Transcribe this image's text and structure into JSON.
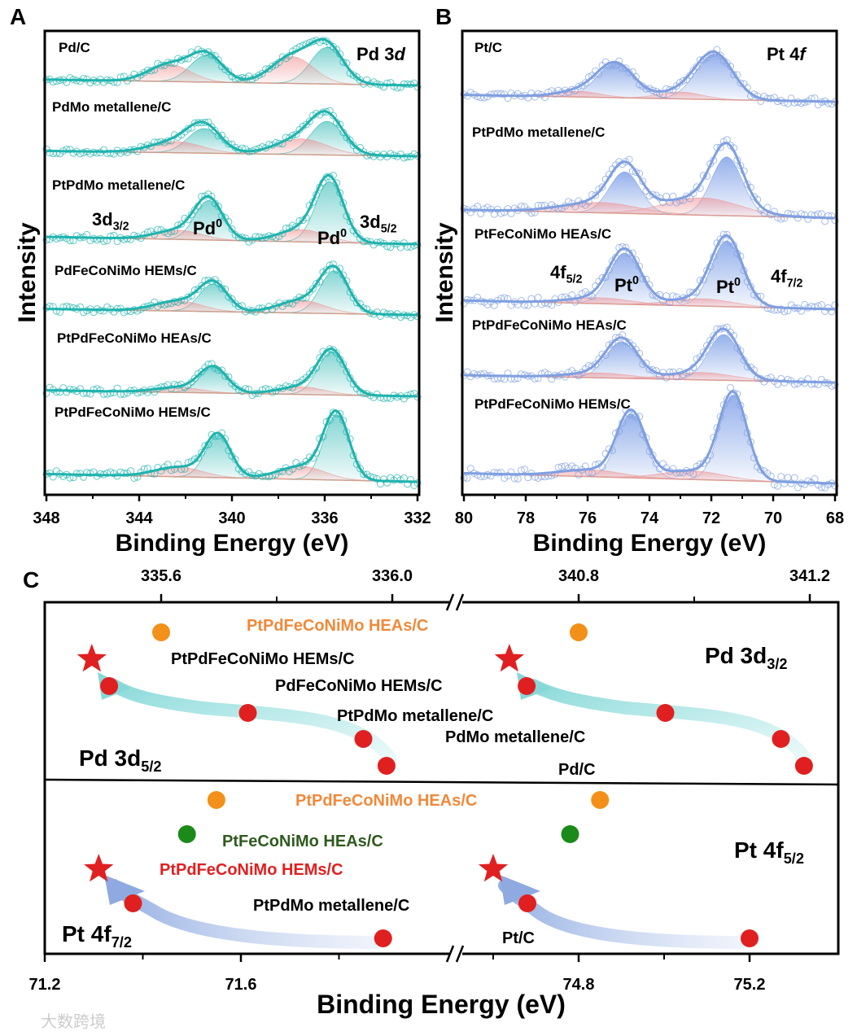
{
  "panel_letters": [
    "A",
    "B",
    "C"
  ],
  "watermark": "大数跨境",
  "colors": {
    "teal": "#1fb3ae",
    "blue": "#7f9fe0",
    "oxide": "#f1b3b3",
    "red": "#e02020",
    "orange": "#f39019",
    "green": "#1b8a1b",
    "orange_text": "#f0893a",
    "green_text": "#2f5a1e",
    "red_text": "#e02020"
  },
  "chart_data": [
    {
      "id": "A",
      "type": "line",
      "title": {
        "main": "Pd 3",
        "italic": "d"
      },
      "xlabel": "Binding Energy (eV)",
      "ylabel": "Intensity",
      "xlim": [
        348,
        332
      ],
      "xticks": [
        348,
        344,
        340,
        336,
        332
      ],
      "annotations": [
        {
          "main": "3d",
          "sub": "3/2",
          "pos": 346.3
        },
        {
          "main": "Pd",
          "sup": "0",
          "pos": 341.0
        },
        {
          "main": "Pd",
          "sup": "0",
          "pos": 335.9
        },
        {
          "main": "3d",
          "sub": "5/2",
          "pos": 333.6
        }
      ],
      "samples": [
        {
          "name": "Pd/C",
          "peaks": [
            [
              335.9,
              0.75,
              0.7,
              "metal"
            ],
            [
              341.1,
              0.55,
              0.7,
              "metal"
            ],
            [
              337.4,
              0.55,
              0.9,
              "oxide"
            ],
            [
              342.7,
              0.35,
              0.9,
              "oxide"
            ]
          ]
        },
        {
          "name": "PdMo metallene/C",
          "peaks": [
            [
              335.9,
              0.75,
              0.7,
              "metal"
            ],
            [
              341.2,
              0.55,
              0.7,
              "metal"
            ],
            [
              337.0,
              0.35,
              1.1,
              "oxide"
            ],
            [
              342.4,
              0.25,
              1.1,
              "oxide"
            ]
          ]
        },
        {
          "name": "PtPdMo metallene/C",
          "peaks": [
            [
              335.8,
              1.0,
              0.6,
              "metal"
            ],
            [
              341.0,
              0.65,
              0.6,
              "metal"
            ],
            [
              337.0,
              0.2,
              1.0,
              "oxide"
            ],
            [
              342.3,
              0.15,
              1.0,
              "oxide"
            ]
          ]
        },
        {
          "name": "PdFeCoNiMo HEMs/C",
          "peaks": [
            [
              335.6,
              0.85,
              0.6,
              "metal"
            ],
            [
              340.8,
              0.55,
              0.6,
              "metal"
            ],
            [
              337.0,
              0.25,
              1.0,
              "oxide"
            ],
            [
              342.3,
              0.2,
              1.0,
              "oxide"
            ]
          ]
        },
        {
          "name": "PtPdFeCoNiMo HEAs/C",
          "peaks": [
            [
              335.7,
              0.85,
              0.6,
              "metal"
            ],
            [
              340.8,
              0.5,
              0.6,
              "metal"
            ],
            [
              337.0,
              0.15,
              1.0,
              "oxide"
            ],
            [
              342.3,
              0.1,
              1.0,
              "oxide"
            ]
          ]
        },
        {
          "name": "PtPdFeCoNiMo HEMs/C",
          "peaks": [
            [
              335.5,
              1.0,
              0.55,
              "metal"
            ],
            [
              340.6,
              0.65,
              0.55,
              "metal"
            ],
            [
              337.0,
              0.2,
              1.0,
              "oxide"
            ],
            [
              342.3,
              0.15,
              1.0,
              "oxide"
            ]
          ]
        }
      ]
    },
    {
      "id": "B",
      "type": "line",
      "title": {
        "main": "Pt 4",
        "italic": "f"
      },
      "xlabel": "Binding Energy (eV)",
      "ylabel": "Intensity",
      "xlim": [
        80,
        68
      ],
      "xticks": [
        80,
        78,
        76,
        74,
        72,
        70,
        68
      ],
      "annotations": [
        {
          "main": "4f",
          "sub": "5/2",
          "pos": 76.2
        },
        {
          "main": "Pt",
          "sup": "0",
          "pos": 74.7
        },
        {
          "main": "Pt",
          "sup": "0",
          "pos": 71.5
        },
        {
          "main": "4f",
          "sub": "7/2",
          "pos": 69.4
        }
      ],
      "samples": [
        {
          "name": "Pt/C",
          "peaks": [
            [
              71.9,
              0.8,
              0.6,
              "metal"
            ],
            [
              75.1,
              0.6,
              0.6,
              "metal"
            ],
            [
              73.0,
              0.12,
              0.7,
              "oxide"
            ],
            [
              76.3,
              0.1,
              0.7,
              "oxide"
            ]
          ]
        },
        {
          "name": "PtPdMo metallene/C",
          "peaks": [
            [
              71.5,
              0.85,
              0.5,
              "metal"
            ],
            [
              74.8,
              0.6,
              0.5,
              "metal"
            ],
            [
              72.3,
              0.25,
              1.2,
              "oxide"
            ],
            [
              75.6,
              0.15,
              1.2,
              "oxide"
            ]
          ]
        },
        {
          "name": "PtFeCoNiMo HEAs/C",
          "peaks": [
            [
              71.5,
              0.9,
              0.5,
              "metal"
            ],
            [
              74.8,
              0.7,
              0.5,
              "metal"
            ],
            [
              72.3,
              0.1,
              1.0,
              "oxide"
            ],
            [
              75.6,
              0.08,
              1.0,
              "oxide"
            ]
          ]
        },
        {
          "name": "PtPdFeCoNiMo HEAs/C",
          "peaks": [
            [
              71.6,
              0.75,
              0.5,
              "metal"
            ],
            [
              74.9,
              0.6,
              0.5,
              "metal"
            ],
            [
              72.3,
              0.12,
              1.0,
              "oxide"
            ],
            [
              75.6,
              0.08,
              1.0,
              "oxide"
            ]
          ]
        },
        {
          "name": "PtPdFeCoNiMo HEMs/C",
          "peaks": [
            [
              71.3,
              1.0,
              0.45,
              "metal"
            ],
            [
              74.6,
              0.75,
              0.45,
              "metal"
            ],
            [
              72.6,
              0.1,
              1.0,
              "oxide"
            ],
            [
              75.9,
              0.08,
              1.0,
              "oxide"
            ]
          ]
        }
      ]
    },
    {
      "id": "C",
      "type": "scatter",
      "xlabel": "Binding Energy (eV)",
      "top_axis": {
        "left_ticks": [
          335.6,
          336.0
        ],
        "left_minor": [
          335.8
        ],
        "left_range": [
          335.4,
          336.11
        ],
        "right_ticks": [
          340.8,
          341.2
        ],
        "right_minor": [
          341.0
        ],
        "right_range": [
          340.57,
          341.26
        ]
      },
      "bottom_axis": {
        "left_ticks": [
          71.2,
          71.6
        ],
        "left_minor": [
          71.4,
          71.8
        ],
        "left_range": [
          71.2,
          72.04
        ],
        "right_ticks": [
          74.8,
          75.2
        ],
        "right_minor": [
          74.6,
          75.0
        ],
        "right_range": [
          74.6,
          75.4
        ]
      },
      "top": {
        "label_left": {
          "main": "Pd 3d",
          "sub": "5/2"
        },
        "label_right": {
          "main": "Pd 3d",
          "sub": "3/2"
        },
        "points": [
          {
            "name": "PtPdFeCoNiMo HEAs/C",
            "color": "orange",
            "marker": "circle",
            "left": 335.6,
            "right": 340.8
          },
          {
            "name": "PtPdFeCoNiMo HEMs/C",
            "color": "red",
            "marker": "star",
            "left": 335.48,
            "right": 340.68
          },
          {
            "name": "PdFeCoNiMo HEMs/C",
            "color": "red",
            "marker": "circle",
            "left": 335.51,
            "right": 340.71
          },
          {
            "name": "PtPdMo metallene/C",
            "color": "red",
            "marker": "circle",
            "left": 335.75,
            "right": 340.95
          },
          {
            "name": "PdMo metallene/C",
            "color": "red",
            "marker": "circle",
            "left": 335.95,
            "right": 341.15
          },
          {
            "name": "Pd/C",
            "color": "red",
            "marker": "circle",
            "left": 335.99,
            "right": 341.19
          }
        ]
      },
      "bottom": {
        "label_left": {
          "main": "Pt 4f",
          "sub": "7/2"
        },
        "label_right": {
          "main": "Pt 4f",
          "sub": "5/2"
        },
        "points": [
          {
            "name": "PtPdFeCoNiMo HEAs/C",
            "color": "orange",
            "marker": "circle",
            "left": 71.55,
            "right": 74.85
          },
          {
            "name": "PtFeCoNiMo HEAs/C",
            "color": "green",
            "marker": "circle",
            "left": 71.49,
            "right": 74.78
          },
          {
            "name": "PtPdFeCoNiMo HEMs/C",
            "color": "red",
            "marker": "star",
            "left": 71.31,
            "right": 74.6
          },
          {
            "name": "PtPdMo metallene/C",
            "color": "red",
            "marker": "circle",
            "left": 71.38,
            "right": 74.68
          },
          {
            "name": "Pt/C",
            "color": "red",
            "marker": "circle",
            "left": 71.89,
            "right": 75.2
          }
        ]
      }
    }
  ]
}
